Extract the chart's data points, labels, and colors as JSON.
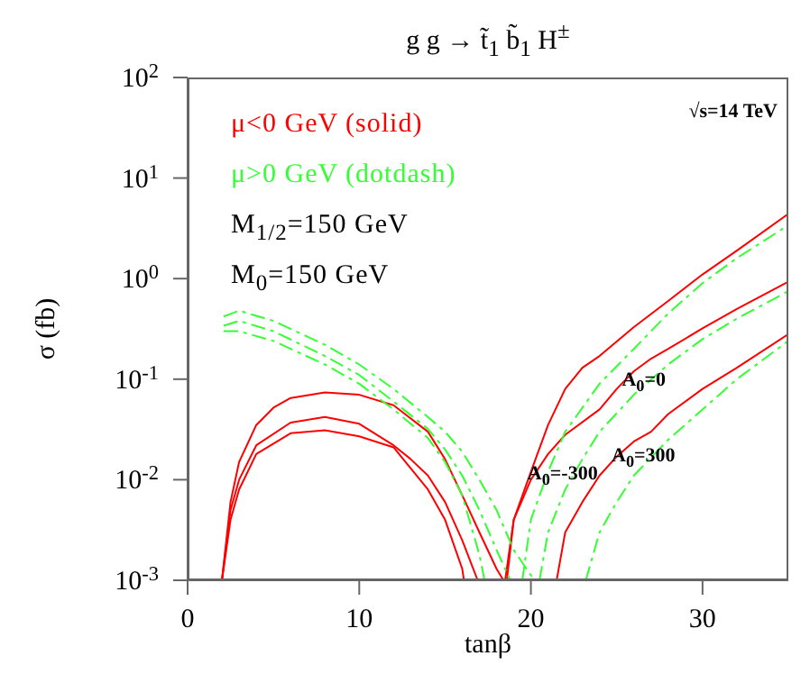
{
  "chart_data": {
    "type": "line",
    "title": "g g → t̃$_{1}$ b̃$_{1}$ H$^{±}$",
    "xlabel": "tanβ",
    "ylabel": "σ (fb)",
    "log": "y",
    "grid": false,
    "legend": false,
    "marker": "none",
    "xlim": [
      0,
      35
    ],
    "xticks": [
      0,
      10,
      20,
      30
    ],
    "ylim": [
      0.001,
      100
    ],
    "yticks": [
      {
        "value": 0.001,
        "label": "10$^{-3}$"
      },
      {
        "value": 0.01,
        "label": "10$^{-2}$"
      },
      {
        "value": 0.1,
        "label": "10$^{-1}$"
      },
      {
        "value": 1,
        "label": "10$^{0}$"
      },
      {
        "value": 10,
        "label": "10$^{1}$"
      },
      {
        "value": 100,
        "label": "10$^{2}$"
      }
    ],
    "annotations": [
      "μ<0 GeV (solid)",
      "μ>0 GeV (dotdash)",
      "M$_{1/2}$=150 GeV",
      "M$_{0}$=150 GeV",
      "√s=14 TeV",
      {
        "text": "A$_{0}$=0",
        "x": 25.3,
        "y": 0.08
      },
      {
        "text": "A$_{0}$=-300",
        "x": 19.8,
        "y": 0.0093
      },
      {
        "text": "A$_{0}$=300",
        "x": 24.7,
        "y": 0.014
      }
    ],
    "series": [
      {
        "color": "#ff0000",
        "line_style": "solid",
        "x": [
          2,
          2.5,
          3,
          4,
          5,
          6,
          8,
          10,
          12,
          14,
          15,
          16,
          17,
          18,
          18.4
        ],
        "values": [
          0.001,
          0.006,
          0.015,
          0.035,
          0.052,
          0.065,
          0.074,
          0.07,
          0.055,
          0.03,
          0.016,
          0.007,
          0.003,
          0.0013,
          0.001
        ]
      },
      {
        "color": "#ff0000",
        "line_style": "solid",
        "x": [
          2,
          2.5,
          3,
          4,
          6,
          8,
          10,
          12,
          13,
          14,
          15,
          16,
          16.9
        ],
        "values": [
          0.001,
          0.005,
          0.01,
          0.022,
          0.037,
          0.042,
          0.036,
          0.022,
          0.016,
          0.011,
          0.006,
          0.0025,
          0.001
        ]
      },
      {
        "color": "#ff0000",
        "line_style": "solid",
        "x": [
          2,
          2.5,
          3,
          4,
          6,
          8,
          10,
          12,
          14,
          15,
          16,
          16.1
        ],
        "values": [
          0.001,
          0.004,
          0.008,
          0.018,
          0.029,
          0.031,
          0.027,
          0.021,
          0.008,
          0.004,
          0.0013,
          0.001
        ]
      },
      {
        "color": "#ff0000",
        "line_style": "solid",
        "x": [
          18.5,
          19,
          20,
          21,
          22,
          23,
          24,
          26,
          28,
          30,
          32,
          35
        ],
        "values": [
          0.001,
          0.004,
          0.012,
          0.035,
          0.08,
          0.13,
          0.17,
          0.33,
          0.6,
          1.1,
          1.9,
          4.4
        ]
      },
      {
        "color": "#ff0000",
        "line_style": "solid",
        "x": [
          18.6,
          19,
          20,
          21,
          22,
          24,
          25,
          26,
          27,
          28,
          30,
          32,
          35
        ],
        "values": [
          0.001,
          0.004,
          0.01,
          0.018,
          0.028,
          0.05,
          0.08,
          0.12,
          0.16,
          0.2,
          0.32,
          0.5,
          0.93
        ]
      },
      {
        "color": "#ff0000",
        "line_style": "solid",
        "x": [
          21.5,
          22,
          23,
          24,
          25,
          26,
          27,
          28,
          30,
          32,
          35
        ],
        "values": [
          0.001,
          0.003,
          0.006,
          0.011,
          0.017,
          0.024,
          0.03,
          0.045,
          0.08,
          0.13,
          0.28
        ]
      },
      {
        "color": "#33ff33",
        "line_style": "dashed",
        "x": [
          2.1,
          3,
          5,
          8,
          10,
          12,
          14,
          15,
          16,
          17,
          18,
          19,
          20.2
        ],
        "values": [
          0.42,
          0.48,
          0.38,
          0.22,
          0.14,
          0.08,
          0.042,
          0.03,
          0.019,
          0.01,
          0.005,
          0.002,
          0.001
        ]
      },
      {
        "color": "#33ff33",
        "line_style": "dashed",
        "x": [
          2.1,
          3,
          5,
          8,
          10,
          12,
          14,
          15,
          16,
          17,
          18,
          18.8
        ],
        "values": [
          0.34,
          0.38,
          0.3,
          0.17,
          0.11,
          0.06,
          0.032,
          0.02,
          0.011,
          0.005,
          0.002,
          0.001
        ]
      },
      {
        "color": "#33ff33",
        "line_style": "dashed",
        "x": [
          2.1,
          3,
          5,
          8,
          10,
          12,
          14,
          15,
          16,
          17,
          17.3
        ],
        "values": [
          0.3,
          0.3,
          0.24,
          0.14,
          0.09,
          0.05,
          0.026,
          0.015,
          0.007,
          0.0018,
          0.001
        ]
      },
      {
        "color": "#33ff33",
        "line_style": "dashed",
        "x": [
          19.5,
          20,
          21,
          22,
          24,
          26,
          28,
          30,
          32,
          35
        ],
        "values": [
          0.001,
          0.004,
          0.012,
          0.03,
          0.09,
          0.2,
          0.45,
          0.9,
          1.6,
          3.4
        ]
      },
      {
        "color": "#33ff33",
        "line_style": "dashed",
        "x": [
          20.5,
          21,
          22,
          23,
          24,
          26,
          28,
          30,
          32,
          35
        ],
        "values": [
          0.001,
          0.003,
          0.008,
          0.016,
          0.03,
          0.07,
          0.14,
          0.25,
          0.4,
          0.75
        ]
      },
      {
        "color": "#33ff33",
        "line_style": "dashed",
        "x": [
          23.2,
          24,
          25,
          26,
          28,
          30,
          32,
          35
        ],
        "values": [
          0.001,
          0.003,
          0.006,
          0.011,
          0.025,
          0.05,
          0.1,
          0.24
        ]
      }
    ]
  }
}
